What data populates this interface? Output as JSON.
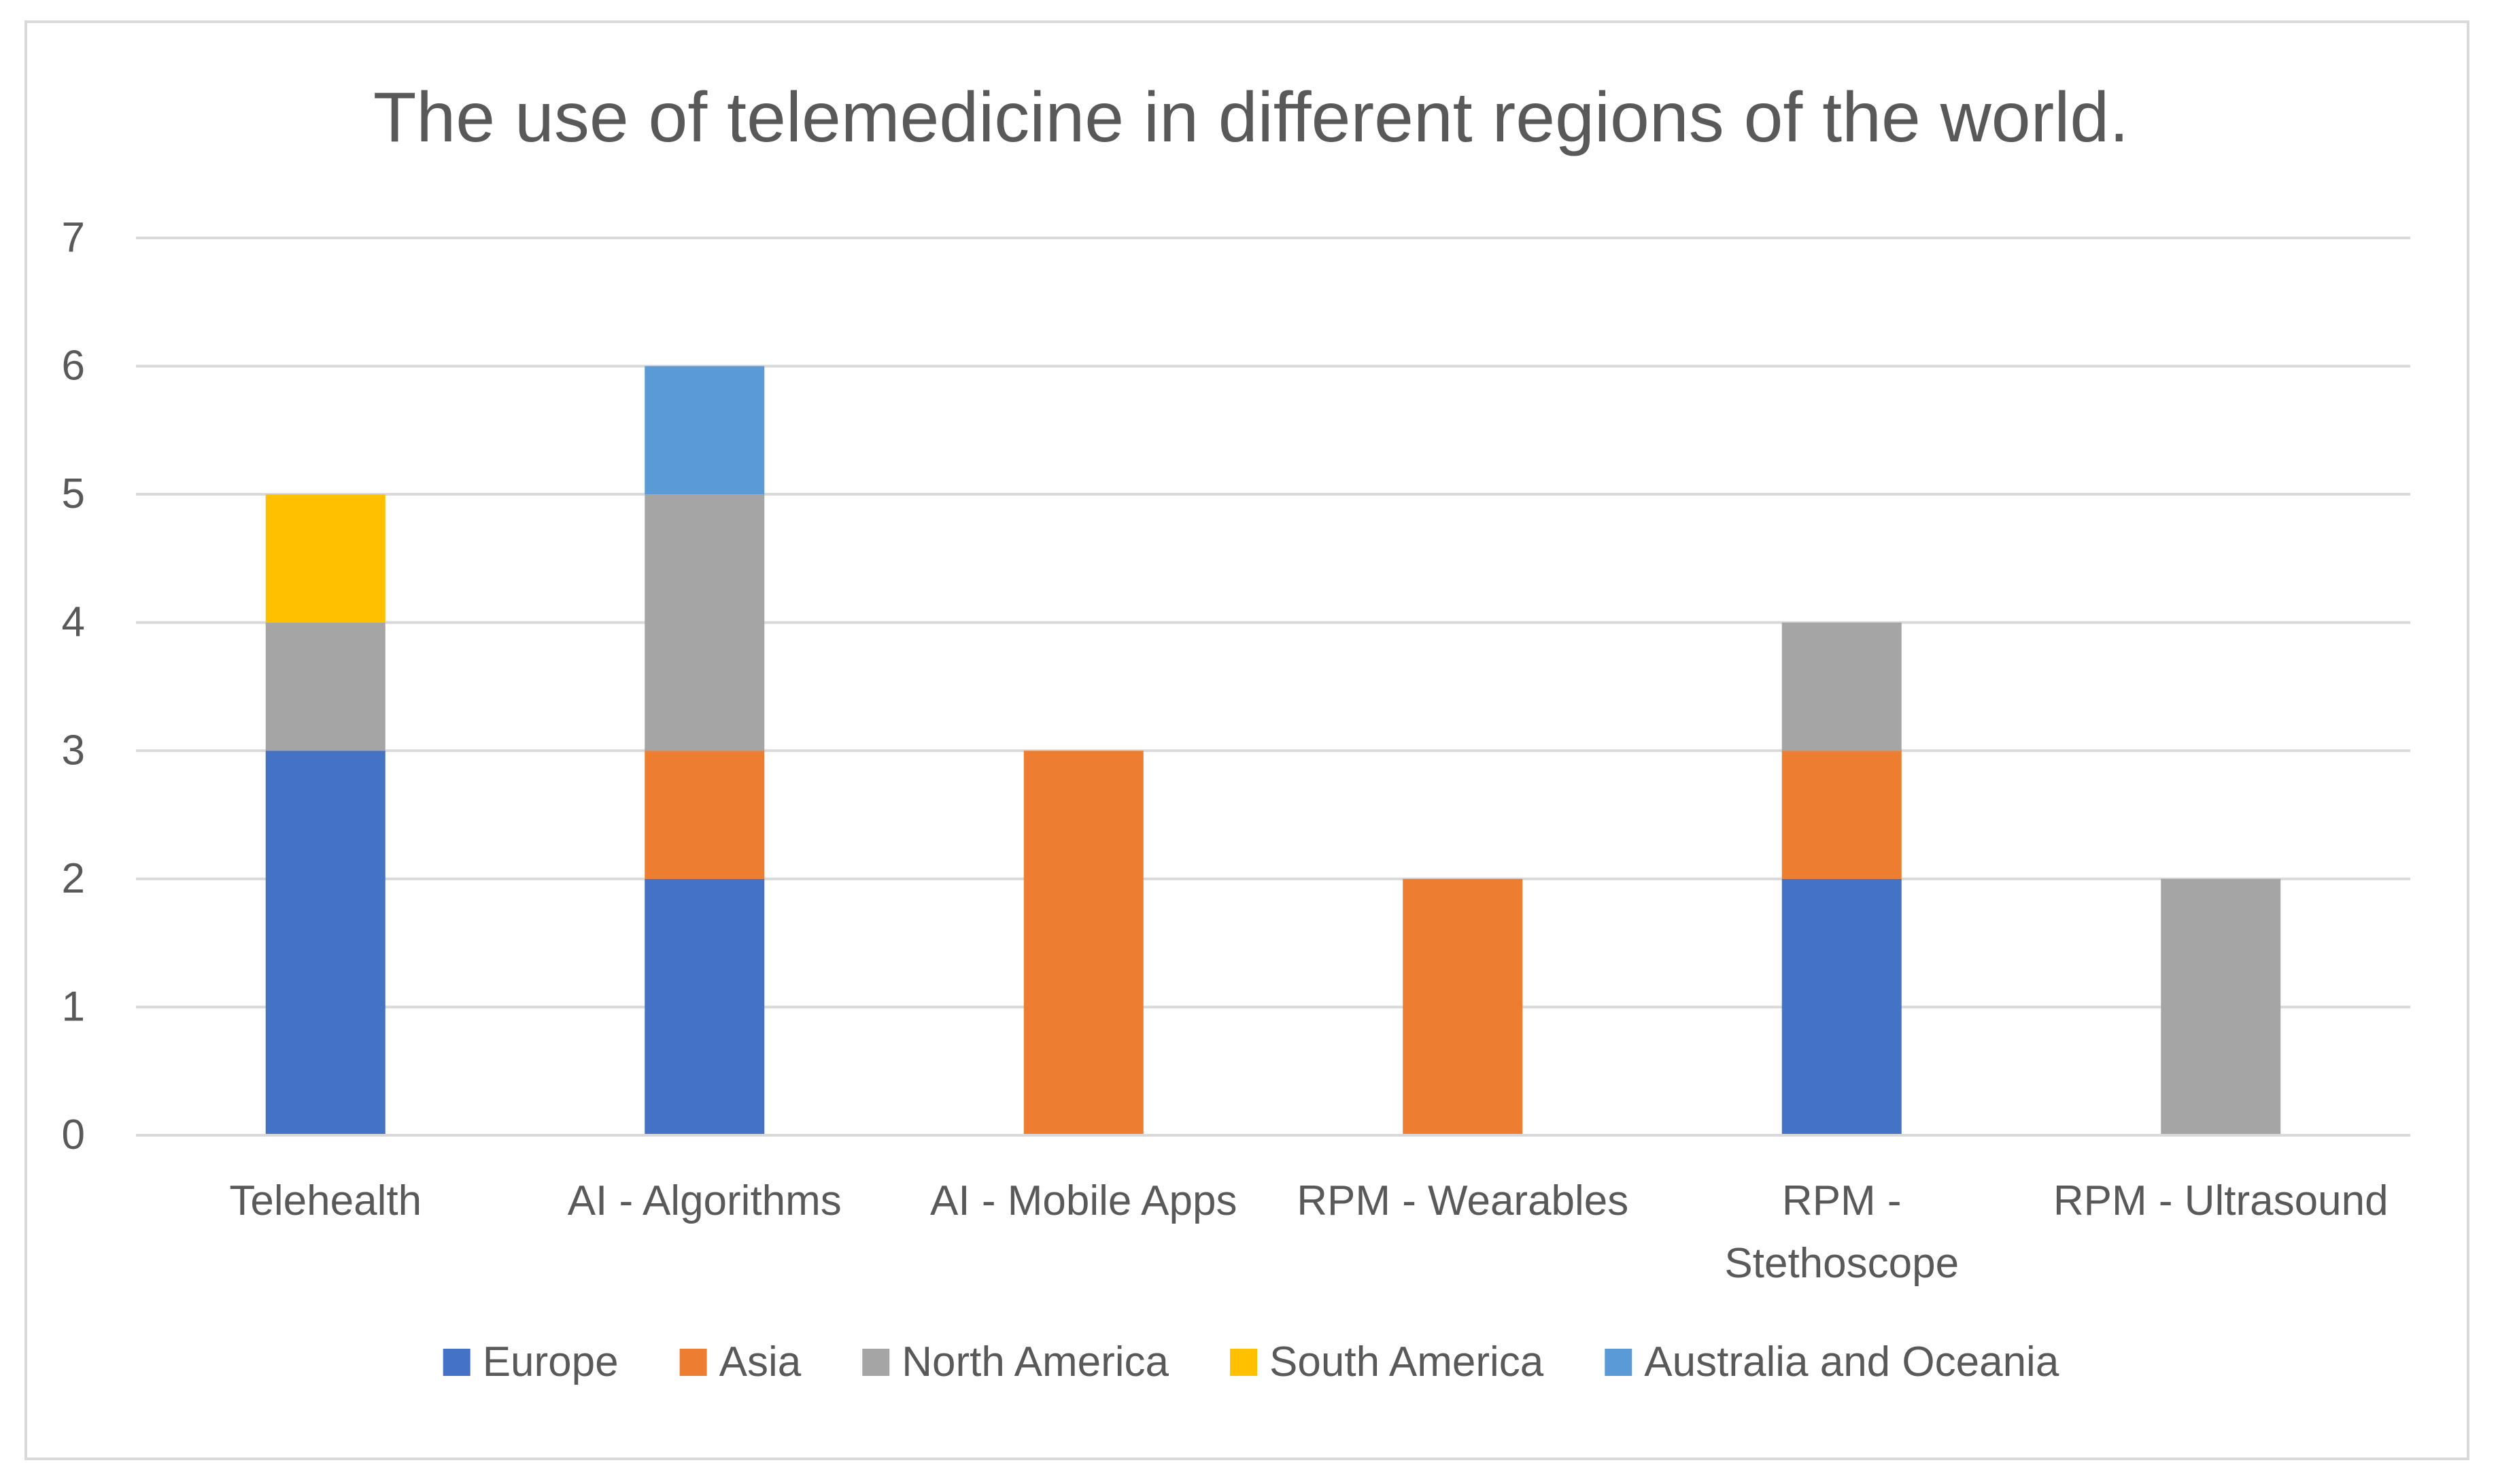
{
  "chart_data": {
    "type": "bar",
    "stacked": true,
    "title": "The use of telemedicine in different regions of the world.",
    "xlabel": "",
    "ylabel": "",
    "ylim": [
      0,
      7
    ],
    "yticks": [
      "0",
      "1",
      "2",
      "3",
      "4",
      "5",
      "6",
      "7"
    ],
    "grid": true,
    "legend_position": "bottom",
    "categories": [
      [
        "Telehealth"
      ],
      [
        "AI - Algorithms"
      ],
      [
        "AI - Mobile Apps"
      ],
      [
        "RPM - Wearables"
      ],
      [
        "RPM -",
        "Stethoscope"
      ],
      [
        "RPM - Ultrasound"
      ]
    ],
    "series": [
      {
        "name": "Europe",
        "color": "#4472C4",
        "values": [
          3,
          2,
          0,
          0,
          2,
          0
        ]
      },
      {
        "name": "Asia",
        "color": "#ED7D31",
        "values": [
          0,
          1,
          3,
          2,
          1,
          0
        ]
      },
      {
        "name": "North America",
        "color": "#A5A5A5",
        "values": [
          1,
          2,
          0,
          0,
          1,
          2
        ]
      },
      {
        "name": "South America",
        "color": "#FFC000",
        "values": [
          1,
          0,
          0,
          0,
          0,
          0
        ]
      },
      {
        "name": "Australia and Oceania",
        "color": "#5B9BD5",
        "values": [
          0,
          1,
          0,
          0,
          0,
          0
        ]
      }
    ]
  }
}
